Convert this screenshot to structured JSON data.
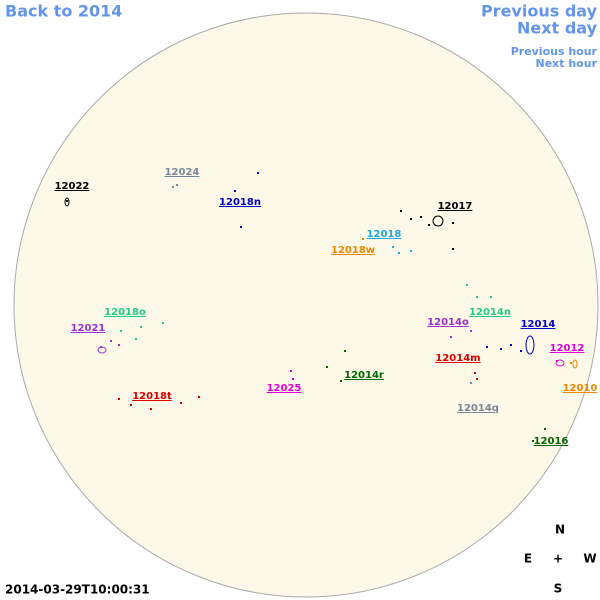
{
  "navigation": {
    "back": "Back to 2014",
    "previous_day": "Previous day",
    "next_day": "Next day",
    "previous_hour": "Previous hour",
    "next_hour": "Next hour"
  },
  "regions": [
    {
      "label": "12022",
      "color": "#000000"
    },
    {
      "label": "12024",
      "color": "#778899"
    },
    {
      "label": "12018n",
      "color": "#0000cc"
    },
    {
      "label": "12017",
      "color": "#000000"
    },
    {
      "label": "12018",
      "color": "#1ea8e0"
    },
    {
      "label": "12018w",
      "color": "#ee8800"
    },
    {
      "label": "12018o",
      "color": "#22cc88"
    },
    {
      "label": "12021",
      "color": "#9933cc"
    },
    {
      "label": "12014o",
      "color": "#9933cc"
    },
    {
      "label": "12014n",
      "color": "#22cc88"
    },
    {
      "label": "12014",
      "color": "#0000cc"
    },
    {
      "label": "12014m",
      "color": "#dd0000"
    },
    {
      "label": "12012",
      "color": "#dd00dd"
    },
    {
      "label": "12025",
      "color": "#dd00dd"
    },
    {
      "label": "12014r",
      "color": "#006600"
    },
    {
      "label": "12018t",
      "color": "#dd0000"
    },
    {
      "label": "12010",
      "color": "#ee8800"
    },
    {
      "label": "12014q",
      "color": "#778899"
    },
    {
      "label": "12016",
      "color": "#006600"
    }
  ],
  "compass": {
    "north": "N",
    "east": "E",
    "center": "+",
    "west": "W",
    "south": "S"
  },
  "timestamp": "2014-03-29T10:00:31"
}
